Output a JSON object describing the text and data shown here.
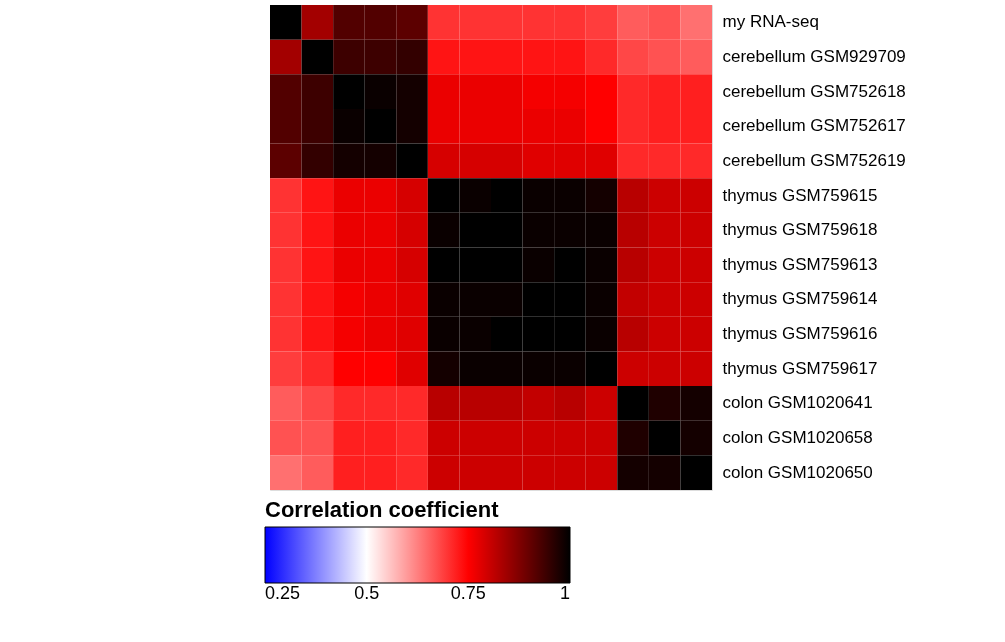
{
  "chart_data": {
    "type": "heatmap",
    "clabel": "Correlation coefficient",
    "categories": [
      null,
      null,
      null,
      null,
      null,
      null,
      null,
      null,
      null,
      null,
      null,
      null,
      null,
      null
    ],
    "y_categories": [
      "my RNA-seq",
      "cerebellum GSM929709",
      "cerebellum GSM752618",
      "cerebellum GSM752617",
      "cerebellum GSM752619",
      "thymus GSM759615",
      "thymus GSM759618",
      "thymus GSM759613",
      "thymus GSM759614",
      "thymus GSM759616",
      "thymus GSM759617",
      "colon GSM1020641",
      "colon GSM1020658",
      "colon GSM1020650"
    ],
    "cells": [
      [
        1,
        0.84,
        0.92,
        0.92,
        0.91,
        0.7,
        0.7,
        0.7,
        0.7,
        0.7,
        0.69,
        0.66,
        0.67,
        0.64
      ],
      [
        0.84,
        1,
        0.94,
        0.94,
        0.95,
        0.73,
        0.73,
        0.73,
        0.73,
        0.73,
        0.71,
        0.68,
        0.67,
        0.66
      ],
      [
        0.92,
        0.94,
        1,
        0.99,
        0.98,
        0.77,
        0.77,
        0.77,
        0.76,
        0.76,
        0.75,
        0.71,
        0.72,
        0.72
      ],
      [
        0.92,
        0.94,
        0.99,
        1,
        0.98,
        0.77,
        0.77,
        0.77,
        0.77,
        0.77,
        0.75,
        0.71,
        0.72,
        0.72
      ],
      [
        0.91,
        0.95,
        0.98,
        0.98,
        1,
        0.79,
        0.79,
        0.79,
        0.78,
        0.78,
        0.78,
        0.71,
        0.71,
        0.71
      ],
      [
        0.7,
        0.73,
        0.77,
        0.77,
        0.79,
        1,
        0.99,
        1,
        0.99,
        0.99,
        0.98,
        0.82,
        0.8,
        0.8
      ],
      [
        0.7,
        0.73,
        0.77,
        0.77,
        0.79,
        0.99,
        1,
        1,
        0.99,
        0.99,
        0.99,
        0.82,
        0.8,
        0.8
      ],
      [
        0.7,
        0.73,
        0.77,
        0.77,
        0.79,
        1,
        1,
        1,
        0.99,
        1,
        0.99,
        0.82,
        0.8,
        0.8
      ],
      [
        0.7,
        0.73,
        0.76,
        0.77,
        0.78,
        0.99,
        0.99,
        0.99,
        1,
        1,
        0.99,
        0.81,
        0.8,
        0.8
      ],
      [
        0.7,
        0.73,
        0.76,
        0.77,
        0.78,
        0.99,
        0.99,
        1,
        1,
        1,
        0.99,
        0.82,
        0.8,
        0.8
      ],
      [
        0.69,
        0.71,
        0.75,
        0.75,
        0.78,
        0.98,
        0.99,
        0.99,
        0.99,
        0.99,
        1,
        0.8,
        0.8,
        0.8
      ],
      [
        0.66,
        0.68,
        0.71,
        0.71,
        0.71,
        0.82,
        0.82,
        0.82,
        0.81,
        0.82,
        0.8,
        1,
        0.97,
        0.98
      ],
      [
        0.67,
        0.67,
        0.72,
        0.72,
        0.71,
        0.8,
        0.8,
        0.8,
        0.8,
        0.8,
        0.8,
        0.97,
        1,
        0.98
      ],
      [
        0.64,
        0.66,
        0.72,
        0.72,
        0.71,
        0.8,
        0.8,
        0.8,
        0.8,
        0.8,
        0.8,
        0.98,
        0.98,
        1
      ]
    ],
    "clim": [
      0.25,
      1
    ],
    "cticks": [
      0.25,
      0.5,
      0.75,
      1
    ]
  }
}
